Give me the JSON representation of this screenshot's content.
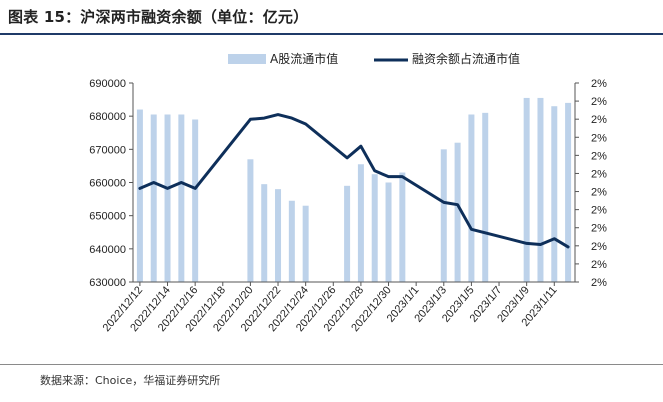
{
  "header": {
    "title": "图表 15：沪深两市融资余额（单位：亿元）"
  },
  "footer": {
    "source": "数据来源：Choice，华福证券研究所"
  },
  "colors": {
    "bar": "#bdd2ea",
    "line": "#0e2f5a",
    "rule": "#1f3a68"
  },
  "chart_data": {
    "type": "bar+line",
    "categories": [
      "2022/12/12",
      "2022/12/13",
      "2022/12/14",
      "2022/12/15",
      "2022/12/16",
      "2022/12/17",
      "2022/12/18",
      "2022/12/19",
      "2022/12/20",
      "2022/12/21",
      "2022/12/22",
      "2022/12/23",
      "2022/12/24",
      "2022/12/25",
      "2022/12/26",
      "2022/12/27",
      "2022/12/28",
      "2022/12/29",
      "2022/12/30",
      "2022/12/31",
      "2023/1/1",
      "2023/1/2",
      "2023/1/3",
      "2023/1/4",
      "2023/1/5",
      "2023/1/6",
      "2023/1/7",
      "2023/1/8",
      "2023/1/9",
      "2023/1/10",
      "2023/1/11",
      "2023/1/12"
    ],
    "x_tick_labels": [
      "2022/12/12",
      "2022/12/14",
      "2022/12/16",
      "2022/12/18",
      "2022/12/20",
      "2022/12/22",
      "2022/12/24",
      "2022/12/26",
      "2022/12/28",
      "2022/12/30",
      "2023/1/1",
      "2023/1/3",
      "2023/1/5",
      "2023/1/7",
      "2023/1/9",
      "2023/1/11"
    ],
    "series": [
      {
        "name": "A股流通市值",
        "type": "bar",
        "axis": "left",
        "values": [
          682000,
          680500,
          680500,
          680500,
          679000,
          null,
          null,
          null,
          667000,
          659500,
          658000,
          654500,
          653000,
          null,
          null,
          659000,
          665500,
          662500,
          660000,
          663000,
          null,
          null,
          670000,
          672000,
          680500,
          681000,
          null,
          null,
          685500,
          685500,
          683000,
          684000
        ]
      },
      {
        "name": "融资余额占流通市值",
        "type": "line",
        "axis": "right",
        "values": [
          2.4,
          2.45,
          2.4,
          2.45,
          2.4,
          null,
          null,
          null,
          2.99,
          3.0,
          3.03,
          3.0,
          2.95,
          null,
          null,
          2.66,
          2.76,
          2.55,
          2.5,
          2.5,
          null,
          null,
          2.28,
          2.26,
          2.05,
          2.02,
          null,
          null,
          1.93,
          1.92,
          1.97,
          1.9
        ]
      }
    ],
    "y_left": {
      "min": 630000,
      "max": 690000,
      "ticks": [
        "630000",
        "640000",
        "650000",
        "660000",
        "670000",
        "680000",
        "690000"
      ]
    },
    "y_right": {
      "tick_labels": [
        "2%",
        "2%",
        "2%",
        "2%",
        "2%",
        "2%",
        "2%",
        "2%",
        "2%",
        "2%",
        "2%",
        "2%"
      ]
    },
    "legend_position": "top-center",
    "grid": false
  }
}
